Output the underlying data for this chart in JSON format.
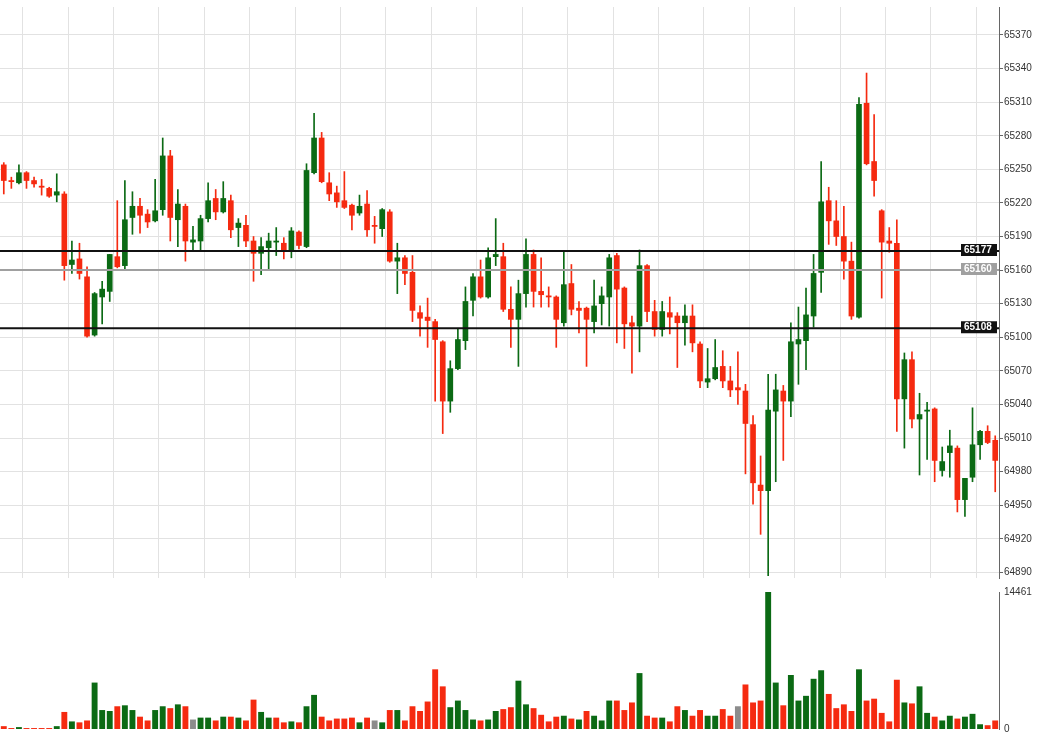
{
  "chart_data": [
    {
      "type": "candlestick",
      "categories": [
        null,
        null,
        null,
        null,
        null,
        null,
        null,
        null,
        null,
        null,
        null,
        null,
        null,
        null,
        null,
        null,
        null,
        null,
        null,
        null,
        null,
        null,
        null,
        null,
        null,
        null,
        null,
        null,
        null,
        null,
        null,
        null,
        null,
        null,
        null,
        null,
        null,
        null,
        null,
        null,
        null,
        null,
        null,
        null,
        null,
        null,
        null,
        null,
        null,
        null,
        null,
        null,
        null,
        null,
        null,
        null,
        null,
        null,
        null,
        null,
        null,
        null,
        null,
        null,
        null,
        null,
        null,
        null,
        null,
        null,
        null,
        null,
        null,
        null,
        null,
        null,
        null,
        null,
        null,
        null,
        null,
        null,
        null,
        null,
        null,
        null,
        null,
        null,
        null,
        null,
        null,
        null,
        null,
        null,
        null,
        null,
        null,
        null,
        null,
        null,
        null,
        null,
        null,
        null,
        null,
        null,
        null,
        null,
        null,
        null,
        null,
        null,
        null,
        null,
        null,
        null,
        null,
        null,
        null,
        null,
        null,
        null,
        null,
        null,
        null,
        null,
        null,
        null,
        null,
        null,
        null,
        null
      ],
      "ohlc": [
        [
          65254,
          65256,
          65228,
          65240
        ],
        [
          65240,
          65243,
          65233,
          65239
        ],
        [
          65238,
          65254,
          65237,
          65247
        ],
        [
          65247,
          65248,
          65233,
          65240
        ],
        [
          65240,
          65243,
          65234,
          65237
        ],
        [
          65235,
          65241,
          65227,
          65234
        ],
        [
          65233,
          65234,
          65225,
          65226
        ],
        [
          65227,
          65246,
          65221,
          65230
        ],
        [
          65228,
          65230,
          65151,
          65164
        ],
        [
          65165,
          65186,
          65157,
          65169
        ],
        [
          65170,
          65184,
          65152,
          65157
        ],
        [
          65154,
          65163,
          65100,
          65101
        ],
        [
          65102,
          65140,
          65101,
          65139
        ],
        [
          65136,
          65150,
          65112,
          65143
        ],
        [
          65141,
          65174,
          65132,
          65174
        ],
        [
          65172,
          65222,
          65162,
          65163
        ],
        [
          65164,
          65240,
          65161,
          65205
        ],
        [
          65207,
          65230,
          65192,
          65217
        ],
        [
          65217,
          65224,
          65193,
          65209
        ],
        [
          65210,
          65214,
          65198,
          65203
        ],
        [
          65204,
          65241,
          65203,
          65213
        ],
        [
          65214,
          65278,
          65209,
          65262
        ],
        [
          65262,
          65267,
          65186,
          65207
        ],
        [
          65205,
          65232,
          65181,
          65219
        ],
        [
          65217,
          65219,
          65168,
          65186
        ],
        [
          65185,
          65199,
          65177,
          65187
        ],
        [
          65186,
          65209,
          65177,
          65206
        ],
        [
          65206,
          65238,
          65203,
          65222
        ],
        [
          65224,
          65232,
          65205,
          65212
        ],
        [
          65212,
          65239,
          65211,
          65224
        ],
        [
          65222,
          65227,
          65189,
          65196
        ],
        [
          65198,
          65206,
          65181,
          65202
        ],
        [
          65200,
          65209,
          65181,
          65186
        ],
        [
          65186,
          65190,
          65150,
          65175
        ],
        [
          65175,
          65189,
          65156,
          65181
        ],
        [
          65180,
          65193,
          65160,
          65186
        ],
        [
          65185,
          65198,
          65173,
          65186
        ],
        [
          65184,
          65189,
          65170,
          65177
        ],
        [
          65178,
          65198,
          65171,
          65195
        ],
        [
          65194,
          65195,
          65179,
          65182
        ],
        [
          65181,
          65255,
          65180,
          65249
        ],
        [
          65247,
          65300,
          65246,
          65278
        ],
        [
          65278,
          65283,
          65238,
          65239
        ],
        [
          65238,
          65247,
          65222,
          65228
        ],
        [
          65229,
          65235,
          65216,
          65221
        ],
        [
          65222,
          65248,
          65215,
          65216
        ],
        [
          65218,
          65219,
          65196,
          65209
        ],
        [
          65211,
          65227,
          65209,
          65217
        ],
        [
          65219,
          65231,
          65190,
          65196
        ],
        [
          65200,
          65208,
          65184,
          65199
        ],
        [
          65197,
          65215,
          65190,
          65214
        ],
        [
          65212,
          65214,
          65167,
          65168
        ],
        [
          65168,
          65184,
          65139,
          65171
        ],
        [
          65171,
          65173,
          65147,
          65157
        ],
        [
          65158,
          65173,
          65114,
          65124
        ],
        [
          65122,
          65128,
          65101,
          65117
        ],
        [
          65118,
          65135,
          65091,
          65115
        ],
        [
          65114,
          65116,
          65043,
          65098
        ],
        [
          65096,
          65097,
          65014,
          65043
        ],
        [
          65043,
          65079,
          65033,
          65072
        ],
        [
          65072,
          65108,
          65071,
          65098
        ],
        [
          65097,
          65145,
          65089,
          65132
        ],
        [
          65133,
          65157,
          65119,
          65154
        ],
        [
          65154,
          65169,
          65135,
          65136
        ],
        [
          65136,
          65180,
          65135,
          65171
        ],
        [
          65172,
          65206,
          65164,
          65174
        ],
        [
          65172,
          65184,
          65123,
          65125
        ],
        [
          65125,
          65145,
          65091,
          65116
        ],
        [
          65116,
          65151,
          65074,
          65139
        ],
        [
          65139,
          65188,
          65127,
          65174
        ],
        [
          65174,
          65178,
          65127,
          65141
        ],
        [
          65141,
          65171,
          65127,
          65138
        ],
        [
          65137,
          65145,
          65127,
          65136
        ],
        [
          65136,
          65137,
          65091,
          65116
        ],
        [
          65113,
          65177,
          65110,
          65147
        ],
        [
          65148,
          65165,
          65120,
          65125
        ],
        [
          65126,
          65132,
          65104,
          65124
        ],
        [
          65126,
          65127,
          65074,
          65116
        ],
        [
          65114,
          65151,
          65104,
          65128
        ],
        [
          65130,
          65145,
          65111,
          65137
        ],
        [
          65136,
          65174,
          65110,
          65171
        ],
        [
          65173,
          65175,
          65095,
          65143
        ],
        [
          65144,
          65145,
          65090,
          65112
        ],
        [
          65113,
          65119,
          65068,
          65110
        ],
        [
          65110,
          65178,
          65087,
          65164
        ],
        [
          65164,
          65165,
          65114,
          65123
        ],
        [
          65123,
          65133,
          65101,
          65107
        ],
        [
          65107,
          65132,
          65101,
          65123
        ],
        [
          65122,
          65136,
          65103,
          65118
        ],
        [
          65119,
          65122,
          65073,
          65113
        ],
        [
          65113,
          65129,
          65093,
          65119
        ],
        [
          65119,
          65129,
          65087,
          65095
        ],
        [
          65094,
          65096,
          65055,
          65061
        ],
        [
          65060,
          65090,
          65055,
          65063
        ],
        [
          65063,
          65098,
          65062,
          65073
        ],
        [
          65074,
          65088,
          65055,
          65061
        ],
        [
          65061,
          65074,
          65047,
          65053
        ],
        [
          65055,
          65087,
          65040,
          65053
        ],
        [
          65052,
          65058,
          64978,
          65023
        ],
        [
          65022,
          65030,
          64951,
          64970
        ],
        [
          64968,
          64994,
          64924,
          64963
        ],
        [
          64963,
          65067,
          64887,
          65035
        ],
        [
          65034,
          65067,
          64971,
          65053
        ],
        [
          65052,
          65057,
          64990,
          65043
        ],
        [
          65043,
          65113,
          65029,
          65096
        ],
        [
          65094,
          65127,
          65058,
          65098
        ],
        [
          65097,
          65144,
          65071,
          65120
        ],
        [
          65119,
          65174,
          65109,
          65157
        ],
        [
          65158,
          65257,
          65140,
          65221
        ],
        [
          65222,
          65234,
          65183,
          65204
        ],
        [
          65204,
          65222,
          65182,
          65190
        ],
        [
          65190,
          65217,
          65152,
          65168
        ],
        [
          65168,
          65185,
          65116,
          65119
        ],
        [
          65118,
          65314,
          65117,
          65308
        ],
        [
          65309,
          65336,
          65254,
          65255
        ],
        [
          65257,
          65299,
          65226,
          65240
        ],
        [
          65213,
          65214,
          65135,
          65185
        ],
        [
          65186,
          65198,
          65176,
          65184
        ],
        [
          65184,
          65205,
          65016,
          65045
        ],
        [
          65045,
          65086,
          65001,
          65080
        ],
        [
          65080,
          65087,
          65019,
          65027
        ],
        [
          65027,
          65050,
          64977,
          65031
        ],
        [
          65034,
          65042,
          64991,
          65035
        ],
        [
          65036,
          65037,
          64971,
          64990
        ],
        [
          64981,
          65002,
          64976,
          64989
        ],
        [
          64997,
          65017,
          64975,
          65003
        ],
        [
          65001,
          65003,
          64944,
          64955
        ],
        [
          64955,
          64974,
          64940,
          64974
        ],
        [
          64975,
          65037,
          64971,
          65004
        ],
        [
          65004,
          65017,
          64991,
          65016
        ],
        [
          65016,
          65021,
          65005,
          65006
        ],
        [
          65008,
          65012,
          64962,
          64990
        ]
      ],
      "colors": [
        "#f52a10",
        "#f52a10",
        "#0b6a14",
        "#f52a10",
        "#f52a10",
        "#f52a10",
        "#f52a10",
        "#0b6a14",
        "#f52a10",
        "#0b6a14",
        "#f52a10",
        "#f52a10",
        "#0b6a14",
        "#0b6a14",
        "#0b6a14",
        "#f52a10",
        "#0b6a14",
        "#0b6a14",
        "#f52a10",
        "#f52a10",
        "#0b6a14",
        "#0b6a14",
        "#f52a10",
        "#0b6a14",
        "#f52a10",
        "#0b6a14",
        "#0b6a14",
        "#0b6a14",
        "#f52a10",
        "#0b6a14",
        "#f52a10",
        "#0b6a14",
        "#f52a10",
        "#f52a10",
        "#0b6a14",
        "#0b6a14",
        "#0b6a14",
        "#f52a10",
        "#0b6a14",
        "#f52a10",
        "#0b6a14",
        "#0b6a14",
        "#f52a10",
        "#f52a10",
        "#f52a10",
        "#f52a10",
        "#f52a10",
        "#0b6a14",
        "#f52a10",
        "#f52a10",
        "#0b6a14",
        "#f52a10",
        "#0b6a14",
        "#f52a10",
        "#f52a10",
        "#f52a10",
        "#f52a10",
        "#f52a10",
        "#f52a10",
        "#0b6a14",
        "#0b6a14",
        "#0b6a14",
        "#0b6a14",
        "#f52a10",
        "#0b6a14",
        "#0b6a14",
        "#f52a10",
        "#f52a10",
        "#0b6a14",
        "#0b6a14",
        "#f52a10",
        "#f52a10",
        "#f52a10",
        "#f52a10",
        "#0b6a14",
        "#f52a10",
        "#f52a10",
        "#f52a10",
        "#0b6a14",
        "#0b6a14",
        "#0b6a14",
        "#f52a10",
        "#f52a10",
        "#f52a10",
        "#0b6a14",
        "#f52a10",
        "#f52a10",
        "#0b6a14",
        "#f52a10",
        "#f52a10",
        "#0b6a14",
        "#f52a10",
        "#f52a10",
        "#0b6a14",
        "#0b6a14",
        "#f52a10",
        "#f52a10",
        "#f52a10",
        "#f52a10",
        "#f52a10",
        "#f52a10",
        "#0b6a14",
        "#0b6a14",
        "#f52a10",
        "#0b6a14",
        "#0b6a14",
        "#0b6a14",
        "#0b6a14",
        "#0b6a14",
        "#f52a10",
        "#f52a10",
        "#f52a10",
        "#f52a10",
        "#0b6a14",
        "#f52a10",
        "#f52a10",
        "#f52a10",
        "#f52a10",
        "#f52a10",
        "#0b6a14",
        "#f52a10",
        "#0b6a14",
        "#0b6a14",
        "#f52a10",
        "#0b6a14",
        "#0b6a14",
        "#f52a10",
        "#0b6a14",
        "#0b6a14",
        "#0b6a14",
        "#f52a10",
        "#f52a10"
      ],
      "ylim": [
        64885,
        65395
      ],
      "yticks": [
        64890,
        64920,
        64950,
        64980,
        65010,
        65040,
        65070,
        65100,
        65130,
        65160,
        65190,
        65220,
        65250,
        65280,
        65310,
        65340,
        65370
      ],
      "ref_lines": [
        {
          "axis": "y",
          "value": 65177,
          "label": "65177",
          "color": "#111111"
        },
        {
          "axis": "y",
          "value": 65160,
          "label": "65160",
          "color": "#a0a0a0"
        },
        {
          "axis": "y",
          "value": 65108,
          "label": "65108",
          "color": "#111111"
        }
      ],
      "grid": true,
      "tick_labels": "y"
    },
    {
      "type": "bar",
      "categories": [
        null,
        null,
        null,
        null,
        null,
        null,
        null,
        null,
        null,
        null,
        null,
        null,
        null,
        null,
        null,
        null,
        null,
        null,
        null,
        null,
        null,
        null,
        null,
        null,
        null,
        null,
        null,
        null,
        null,
        null,
        null,
        null,
        null,
        null,
        null,
        null,
        null,
        null,
        null,
        null,
        null,
        null,
        null,
        null,
        null,
        null,
        null,
        null,
        null,
        null,
        null,
        null,
        null,
        null,
        null,
        null,
        null,
        null,
        null,
        null,
        null,
        null,
        null,
        null,
        null,
        null,
        null,
        null,
        null,
        null,
        null,
        null,
        null,
        null,
        null,
        null,
        null,
        null,
        null,
        null,
        null,
        null,
        null,
        null,
        null,
        null,
        null,
        null,
        null,
        null,
        null,
        null,
        null,
        null,
        null,
        null,
        null,
        null,
        null,
        null,
        null,
        null,
        null,
        null,
        null,
        null,
        null,
        null,
        null,
        null,
        null,
        null,
        null,
        null,
        null,
        null,
        null,
        null,
        null,
        null,
        null,
        null,
        null,
        null,
        null,
        null,
        null,
        null,
        null,
        null,
        null,
        null
      ],
      "values": [
        300,
        100,
        200,
        100,
        100,
        100,
        100,
        300,
        1800,
        800,
        700,
        900,
        4900,
        2000,
        1900,
        2400,
        2500,
        2000,
        1300,
        900,
        2000,
        2400,
        2200,
        2600,
        2400,
        1000,
        1200,
        1200,
        900,
        1300,
        1300,
        1200,
        900,
        3100,
        1800,
        1200,
        1200,
        700,
        800,
        700,
        2400,
        3600,
        1300,
        900,
        1100,
        1100,
        1200,
        700,
        1200,
        900,
        700,
        2000,
        2000,
        900,
        2400,
        1900,
        2900,
        6300,
        4500,
        2300,
        3000,
        2000,
        1000,
        900,
        1000,
        1900,
        2100,
        2300,
        5100,
        2600,
        2200,
        1500,
        800,
        1300,
        1400,
        1100,
        1000,
        1900,
        1400,
        900,
        3000,
        3000,
        2000,
        2800,
        5900,
        1400,
        1200,
        1200,
        800,
        2400,
        2000,
        1400,
        2000,
        1400,
        1400,
        2100,
        1400,
        2400,
        4700,
        2800,
        3000,
        14461,
        4900,
        2500,
        5700,
        3000,
        3500,
        5300,
        6200,
        3700,
        2200,
        2600,
        1900,
        6300,
        3000,
        3200,
        1700,
        800,
        5200,
        2800,
        2700,
        4500,
        1700,
        1300,
        900,
        1400,
        1100,
        1300,
        1600,
        500,
        400,
        900
      ],
      "colors": [
        "#f52a10",
        "#f52a10",
        "#0b6a14",
        "#f52a10",
        "#f52a10",
        "#f52a10",
        "#f52a10",
        "#0b6a14",
        "#f52a10",
        "#0b6a14",
        "#f52a10",
        "#f52a10",
        "#0b6a14",
        "#0b6a14",
        "#0b6a14",
        "#f52a10",
        "#0b6a14",
        "#0b6a14",
        "#f52a10",
        "#f52a10",
        "#0b6a14",
        "#0b6a14",
        "#f52a10",
        "#0b6a14",
        "#f52a10",
        "#8c8c8c",
        "#0b6a14",
        "#0b6a14",
        "#f52a10",
        "#0b6a14",
        "#f52a10",
        "#0b6a14",
        "#f52a10",
        "#f52a10",
        "#0b6a14",
        "#0b6a14",
        "#f52a10",
        "#f52a10",
        "#0b6a14",
        "#f52a10",
        "#0b6a14",
        "#0b6a14",
        "#f52a10",
        "#f52a10",
        "#f52a10",
        "#f52a10",
        "#f52a10",
        "#0b6a14",
        "#f52a10",
        "#8c8c8c",
        "#0b6a14",
        "#f52a10",
        "#0b6a14",
        "#f52a10",
        "#f52a10",
        "#f52a10",
        "#f52a10",
        "#f52a10",
        "#f52a10",
        "#0b6a14",
        "#0b6a14",
        "#0b6a14",
        "#0b6a14",
        "#f52a10",
        "#0b6a14",
        "#0b6a14",
        "#f52a10",
        "#f52a10",
        "#0b6a14",
        "#0b6a14",
        "#f52a10",
        "#f52a10",
        "#f52a10",
        "#f52a10",
        "#0b6a14",
        "#f52a10",
        "#0b6a14",
        "#f52a10",
        "#0b6a14",
        "#0b6a14",
        "#0b6a14",
        "#f52a10",
        "#f52a10",
        "#f52a10",
        "#0b6a14",
        "#f52a10",
        "#f52a10",
        "#0b6a14",
        "#f52a10",
        "#f52a10",
        "#0b6a14",
        "#f52a10",
        "#f52a10",
        "#0b6a14",
        "#0b6a14",
        "#f52a10",
        "#f52a10",
        "#8c8c8c",
        "#f52a10",
        "#f52a10",
        "#f52a10",
        "#0b6a14",
        "#0b6a14",
        "#f52a10",
        "#0b6a14",
        "#0b6a14",
        "#0b6a14",
        "#0b6a14",
        "#0b6a14",
        "#f52a10",
        "#f52a10",
        "#f52a10",
        "#f52a10",
        "#0b6a14",
        "#f52a10",
        "#f52a10",
        "#f52a10",
        "#f52a10",
        "#f52a10",
        "#0b6a14",
        "#f52a10",
        "#0b6a14",
        "#0b6a14",
        "#f52a10",
        "#0b6a14",
        "#0b6a14",
        "#f52a10",
        "#0b6a14",
        "#0b6a14",
        "#0b6a14",
        "#f52a10",
        "#f52a10"
      ],
      "ylim": [
        0,
        14461
      ],
      "yticks": [
        0,
        14461
      ],
      "tick_labels": "y"
    }
  ]
}
